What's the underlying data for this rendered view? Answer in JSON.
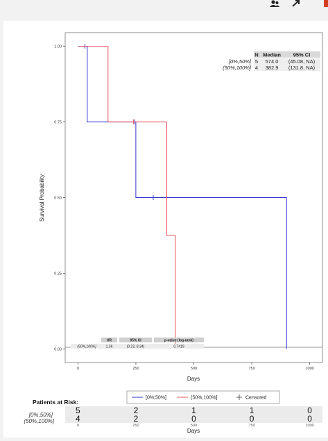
{
  "toolbar": {
    "icons": [
      "users-icon",
      "expand-icon",
      "close-icon"
    ],
    "accent": "#222222",
    "close_color": "#d04020"
  },
  "chart_data": {
    "type": "line",
    "subtype": "kaplan-meier",
    "ylabel": "Survival Probability",
    "xlabel": "Days",
    "xlim": [
      -55,
      1055
    ],
    "ylim": [
      -0.045,
      1.045
    ],
    "x_ticks": [
      0,
      250,
      500,
      750,
      1000
    ],
    "y_ticks": [
      0.0,
      0.25,
      0.5,
      0.75,
      1.0
    ],
    "y_tick_labels": [
      "0.00",
      "0.25",
      "0.50",
      "0.75",
      "1.00"
    ],
    "grid": false,
    "series": [
      {
        "name": "[0%,50%]",
        "color": "#3333cc",
        "steps": [
          [
            0,
            1.0
          ],
          [
            40,
            1.0
          ],
          [
            40,
            0.75
          ],
          [
            250,
            0.75
          ],
          [
            250,
            0.5
          ],
          [
            900,
            0.5
          ],
          [
            900,
            0.0
          ]
        ],
        "censored": [
          [
            30,
            1.0
          ],
          [
            245,
            0.75
          ],
          [
            325,
            0.5
          ]
        ]
      },
      {
        "name": "(50%,100%]",
        "color": "#e8505a",
        "steps": [
          [
            0,
            1.0
          ],
          [
            130,
            1.0
          ],
          [
            130,
            0.75
          ],
          [
            383,
            0.75
          ],
          [
            383,
            0.375
          ],
          [
            420,
            0.375
          ],
          [
            420,
            0.0
          ]
        ],
        "censored": [
          [
            240,
            0.75
          ]
        ]
      }
    ],
    "median_table": {
      "headers": [
        "N",
        "Median",
        "95% CI"
      ],
      "rows": [
        {
          "label": "[0%,50%]",
          "n": "5",
          "median": "574.0",
          "ci": "(45.08, NA)"
        },
        {
          "label": "(50%,100%]",
          "n": "4",
          "median": "382.9",
          "ci": "(131.8, NA)"
        }
      ]
    },
    "hr_table": {
      "headers": [
        "HR",
        "95% CI",
        "p-value (log-rank)"
      ],
      "row": {
        "label": "(50%,100%]",
        "hr": "1.36",
        "ci": "(0.22, 8.34)",
        "p": "0.7419"
      }
    },
    "legend": {
      "placement": "bottom",
      "entries": [
        {
          "label": "[0%,50%]",
          "color": "#3333cc",
          "kind": "line"
        },
        {
          "label": "(50%,100%]",
          "color": "#e8505a",
          "kind": "line"
        },
        {
          "label": "Censored",
          "color": "#555555",
          "kind": "plus"
        }
      ]
    },
    "risk_table": {
      "title": "Patients at Risk:",
      "x_ticks": [
        0,
        250,
        500,
        750,
        1000
      ],
      "x_tick_labels": [
        "0",
        "250",
        "500",
        "750",
        "1000"
      ],
      "xlabel": "Days",
      "rows": [
        {
          "label": "[0%,50%]",
          "values": [
            5,
            2,
            1,
            1,
            0
          ]
        },
        {
          "label": "(50%,100%]",
          "values": [
            4,
            2,
            0,
            0,
            0
          ]
        }
      ]
    }
  }
}
